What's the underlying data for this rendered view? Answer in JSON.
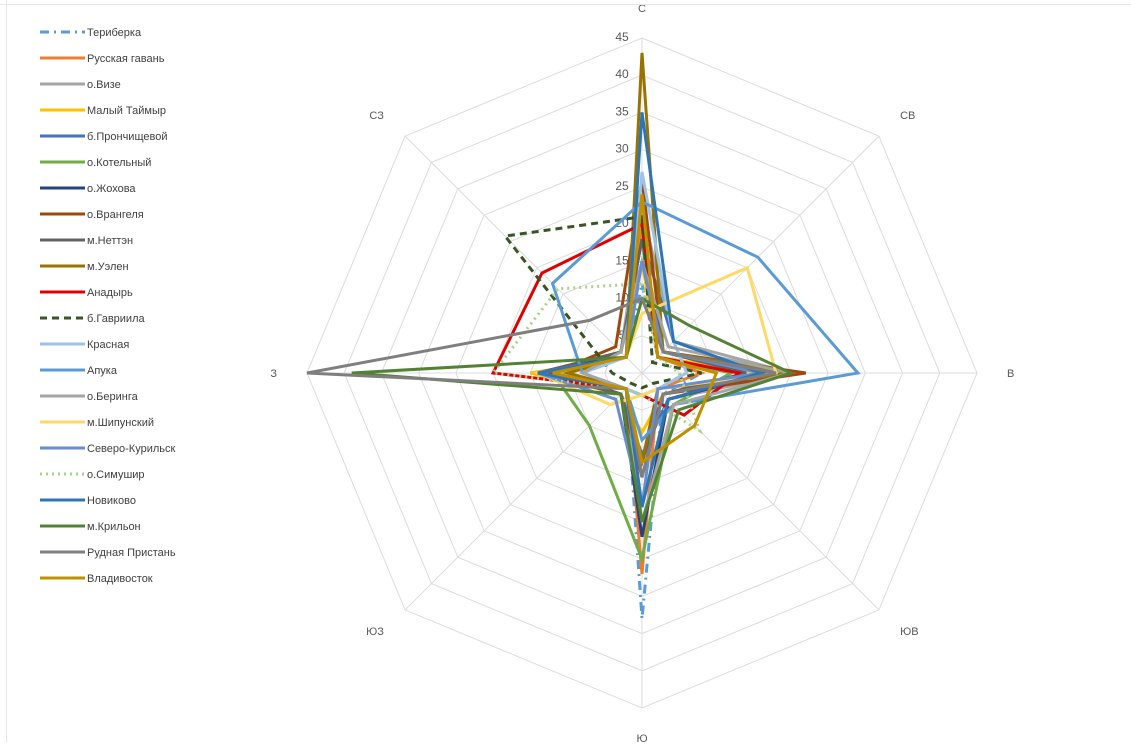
{
  "chart_data": {
    "type": "radar",
    "title": "",
    "axes": [
      "С",
      "СВ",
      "В",
      "ЮВ",
      "Ю",
      "ЮЗ",
      "З",
      "СЗ"
    ],
    "rlim": [
      0,
      45
    ],
    "ticks": [
      5,
      10,
      15,
      20,
      25,
      30,
      35,
      40,
      45
    ],
    "grid": true,
    "legend_position": "left",
    "series": [
      {
        "name": "Териберка",
        "color": "#5b9bd5",
        "dash": "dashdot",
        "values": [
          12,
          3,
          8,
          4,
          33,
          3,
          10,
          3
        ]
      },
      {
        "name": "Русская гавань",
        "color": "#ed7d31",
        "dash": "solid",
        "values": [
          20,
          3,
          8,
          3,
          27,
          3,
          14,
          3
        ]
      },
      {
        "name": "о.Визе",
        "color": "#a5a5a5",
        "dash": "solid",
        "values": [
          22,
          6,
          20,
          5,
          18,
          4,
          12,
          4
        ]
      },
      {
        "name": "Малый Таймыр",
        "color": "#ffc000",
        "dash": "solid",
        "values": [
          15,
          3,
          16,
          4,
          8,
          4,
          15,
          3
        ]
      },
      {
        "name": "б.Прончищевой",
        "color": "#4472c4",
        "dash": "solid",
        "values": [
          18,
          6,
          16,
          5,
          11,
          4,
          12,
          4
        ]
      },
      {
        "name": "о.Котельный",
        "color": "#70ad47",
        "dash": "solid",
        "values": [
          18,
          3,
          12,
          6,
          25,
          10,
          12,
          4
        ]
      },
      {
        "name": "о.Жохова",
        "color": "#264478",
        "dash": "solid",
        "values": [
          15,
          4,
          17,
          5,
          22,
          4,
          12,
          4
        ]
      },
      {
        "name": "о.Врангеля",
        "color": "#9e480e",
        "dash": "solid",
        "values": [
          26,
          4,
          22,
          4,
          14,
          4,
          12,
          5
        ]
      },
      {
        "name": "м.Неттэн",
        "color": "#636363",
        "dash": "solid",
        "values": [
          18,
          4,
          14,
          4,
          12,
          4,
          14,
          4
        ]
      },
      {
        "name": "м.Уэлен",
        "color": "#997300",
        "dash": "solid",
        "values": [
          43,
          4,
          20,
          3,
          12,
          3,
          10,
          3
        ]
      },
      {
        "name": "Анадырь",
        "color": "#e00000",
        "dash": "solid",
        "values": [
          20,
          3,
          13,
          8,
          3,
          3,
          20,
          19
        ]
      },
      {
        "name": "б.Гавриила",
        "color": "#375623",
        "dash": "dash",
        "values": [
          21,
          2,
          8,
          2,
          2,
          2,
          4,
          26
        ]
      },
      {
        "name": "Красная",
        "color": "#9dc3e6",
        "dash": "solid",
        "values": [
          27,
          6,
          6,
          3,
          3,
          3,
          8,
          3
        ]
      },
      {
        "name": "Апука",
        "color": "#5b9bd5",
        "dash": "solid",
        "values": [
          23,
          22,
          29,
          6,
          9,
          3,
          8,
          17
        ]
      },
      {
        "name": "о.Беринга",
        "color": "#a5a5a5",
        "dash": "solid",
        "values": [
          15,
          5,
          20,
          6,
          20,
          3,
          8,
          4
        ]
      },
      {
        "name": "м.Шипунский",
        "color": "#ffd966",
        "dash": "solid",
        "values": [
          8,
          20,
          18,
          3,
          3,
          6,
          14,
          3
        ]
      },
      {
        "name": "Северо-Курильск",
        "color": "#698ed0",
        "dash": "solid",
        "values": [
          15,
          4,
          16,
          3,
          18,
          5,
          14,
          3
        ]
      },
      {
        "name": "о.Симушир",
        "color": "#a9d18e",
        "dash": "dot",
        "values": [
          12,
          3,
          5,
          11,
          3,
          3,
          20,
          16
        ]
      },
      {
        "name": "Новиково",
        "color": "#2e75b6",
        "dash": "solid",
        "values": [
          35,
          6,
          16,
          5,
          18,
          3,
          14,
          3
        ]
      },
      {
        "name": "м.Крильон",
        "color": "#548235",
        "dash": "solid",
        "values": [
          10,
          9,
          20,
          7,
          20,
          4,
          39,
          3
        ]
      },
      {
        "name": "Рудная Пристань",
        "color": "#7f7f7f",
        "dash": "solid",
        "values": [
          10,
          4,
          18,
          4,
          14,
          3,
          45,
          10
        ]
      },
      {
        "name": "Владивосток",
        "color": "#bf9000",
        "dash": "solid",
        "values": [
          24,
          3,
          10,
          10,
          12,
          3,
          12,
          3
        ]
      }
    ]
  }
}
